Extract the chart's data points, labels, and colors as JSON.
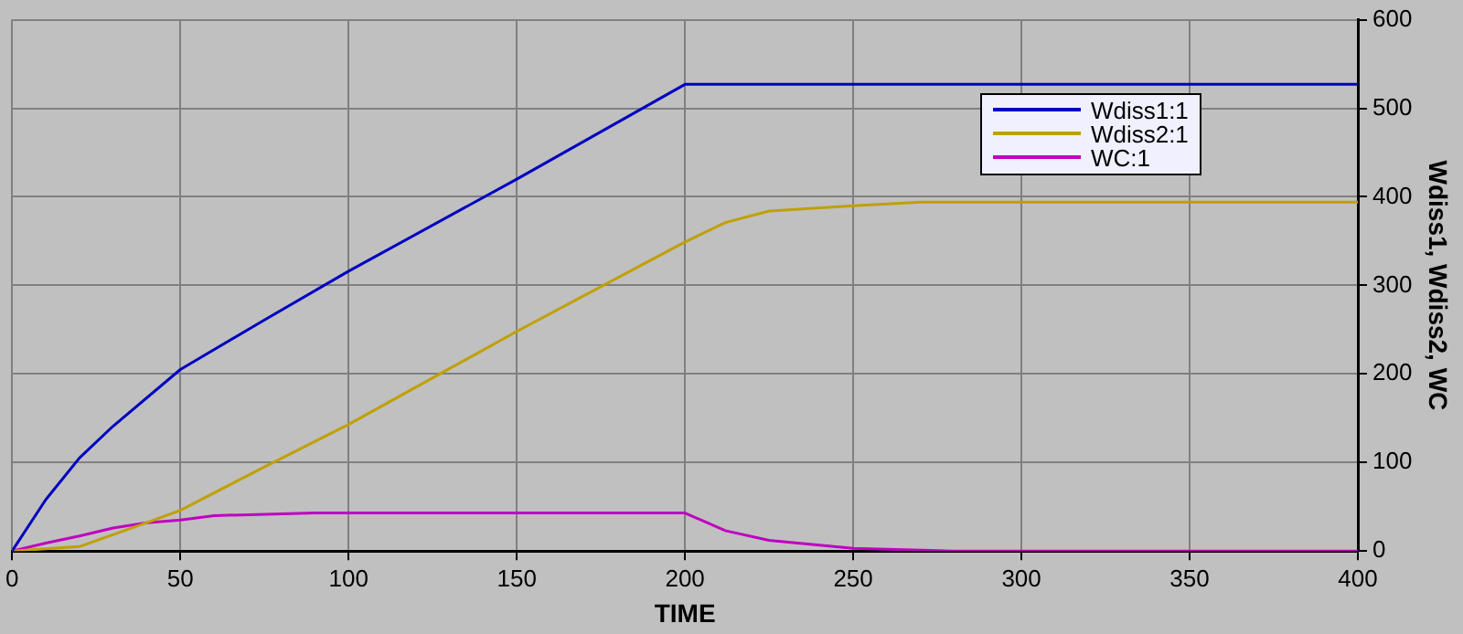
{
  "chart_data": {
    "type": "line",
    "xlabel": "TIME",
    "ylabel": "Wdiss1, Wdiss2, WC",
    "xlim": [
      0,
      400
    ],
    "xticks": [
      0,
      50,
      100,
      150,
      200,
      250,
      300,
      350,
      400
    ],
    "ylim": [
      0,
      600
    ],
    "yticks": [
      0,
      100,
      200,
      300,
      400,
      500,
      600
    ],
    "grid": true,
    "legend": "top right",
    "marker": "none",
    "line_style": "solid",
    "series": [
      {
        "name": "Wdiss1:1",
        "color": "#0000c0",
        "x": [
          0,
          10,
          20,
          30,
          50,
          75,
          100,
          150,
          200,
          400
        ],
        "values": [
          0,
          58,
          105,
          141,
          205,
          261,
          316,
          420,
          527,
          527
        ]
      },
      {
        "name": "Wdiss2:1",
        "color": "#c0a000",
        "x": [
          0,
          20,
          40,
          50,
          75,
          100,
          150,
          200,
          212,
          225,
          250,
          270,
          400
        ],
        "values": [
          0,
          5,
          32,
          46,
          95,
          143,
          248,
          349,
          371,
          384,
          390,
          394,
          394
        ]
      },
      {
        "name": "WC:1",
        "color": "#c000c0",
        "x": [
          0,
          10,
          20,
          30,
          40,
          50,
          60,
          90,
          200,
          212,
          225,
          250,
          280,
          400
        ],
        "values": [
          0,
          9,
          17,
          26,
          32,
          35,
          40,
          43,
          43,
          23,
          12,
          3,
          0,
          0
        ]
      }
    ]
  }
}
